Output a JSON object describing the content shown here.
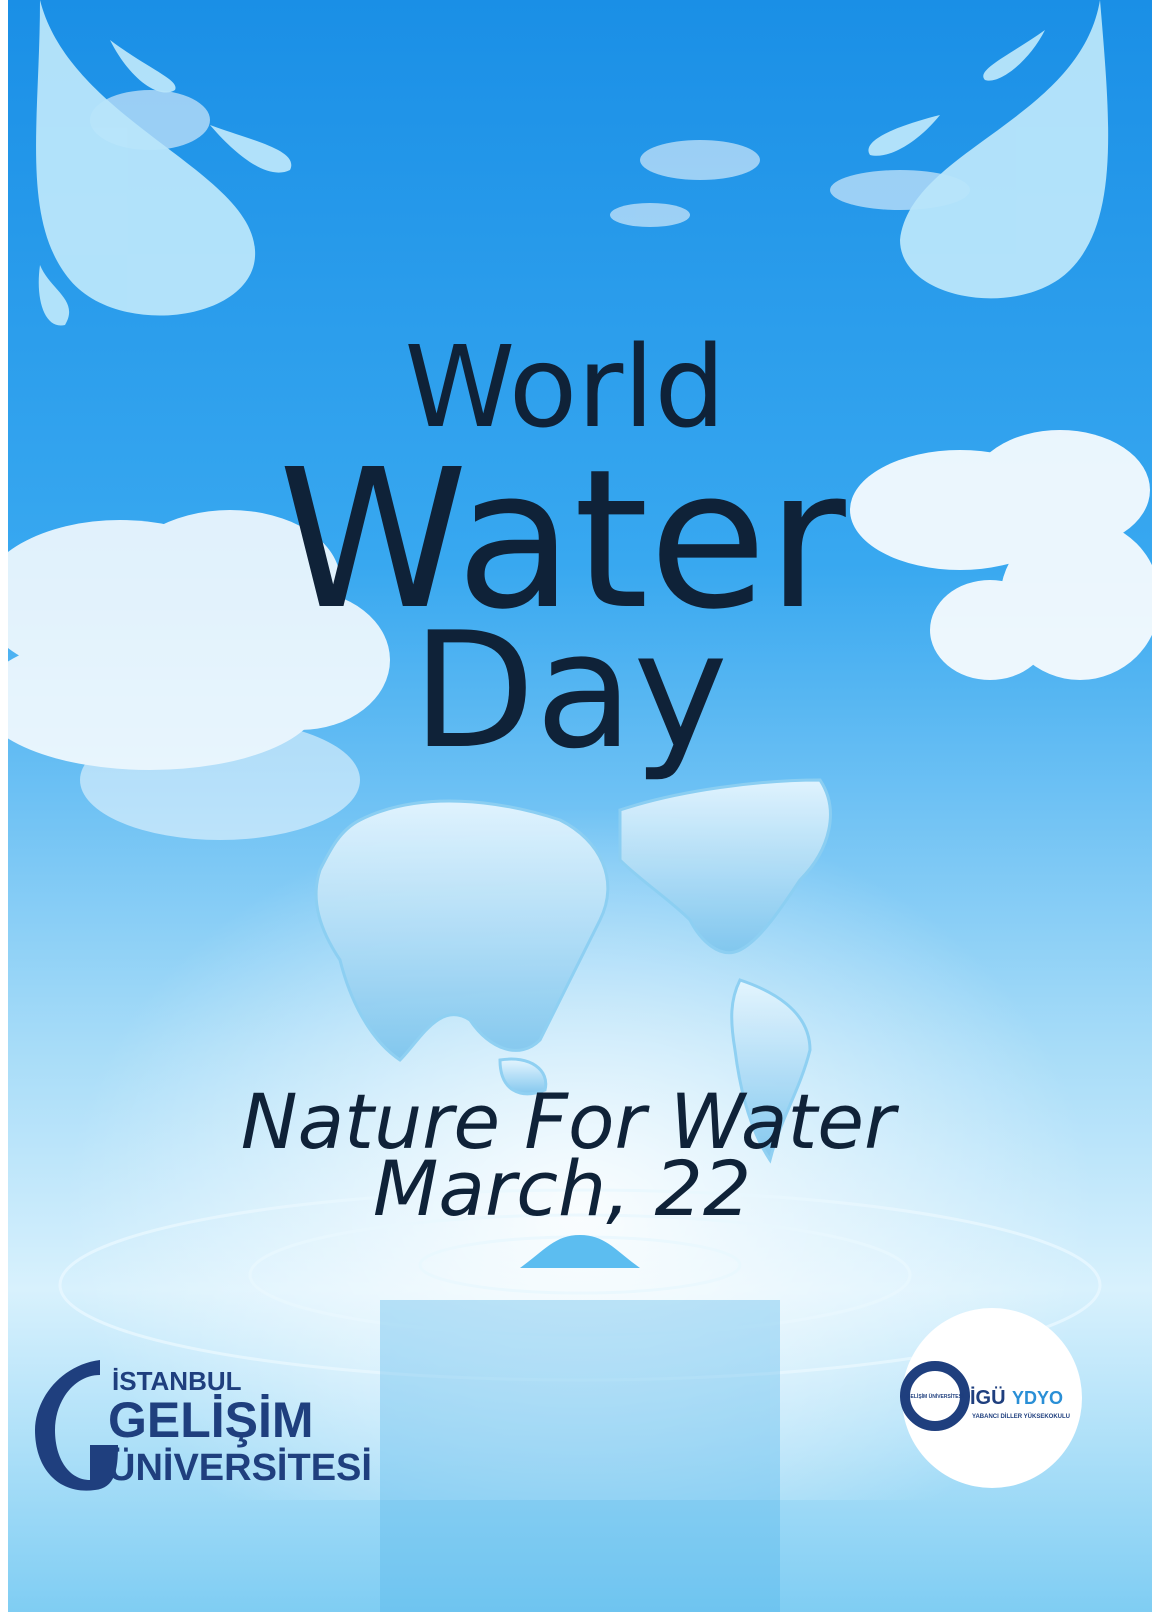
{
  "title": {
    "line1": "World",
    "line2": "Water",
    "line3": "Day"
  },
  "tagline": "Nature For Water",
  "date": "March, 22",
  "logos": {
    "left": {
      "line1": "İSTANBUL",
      "line2": "GELİŞİM",
      "line3": "ÜNİVERSİTESİ"
    },
    "right": {
      "badge": "İGÜ",
      "name": "YDYO",
      "subtitle": "YABANCI DİLLER YÜKSEKOKULU",
      "emblem": "GELİŞİM ÜNİVERSİTESİ"
    }
  }
}
